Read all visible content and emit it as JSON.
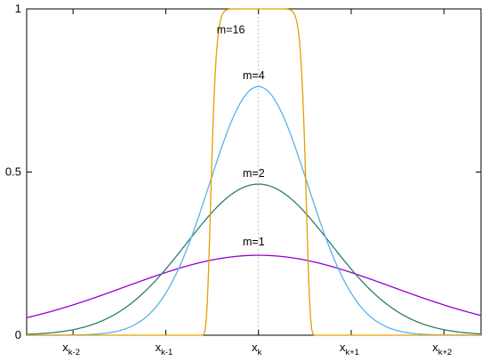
{
  "chart_data": {
    "type": "line",
    "title": "",
    "xlabel": "",
    "ylabel": "",
    "xlim": [
      -2.5,
      2.4
    ],
    "ylim": [
      0,
      1
    ],
    "grid": false,
    "y_ticks": [
      {
        "value": 0,
        "label": "0"
      },
      {
        "value": 0.5,
        "label": "0.5"
      },
      {
        "value": 1,
        "label": "1"
      }
    ],
    "x_ticks": [
      {
        "value": -2,
        "base": "x",
        "sub": "k-2"
      },
      {
        "value": -1,
        "base": "x",
        "sub": "k-1"
      },
      {
        "value": 0,
        "base": "x",
        "sub": "k"
      },
      {
        "value": 1,
        "base": "x",
        "sub": "k+1"
      },
      {
        "value": 2,
        "base": "x",
        "sub": "k+2"
      }
    ],
    "reference_line": {
      "x": 0,
      "style": "dotted",
      "color": "#aaaaaa"
    },
    "series": [
      {
        "name": "m=1",
        "m": 1,
        "color": "#9400d3",
        "peak": 0.245,
        "label_x": -0.17,
        "label_y": 0.275,
        "points": [
          [
            -2.5,
            0.08
          ],
          [
            -2,
            0.12
          ],
          [
            -1.5,
            0.16
          ],
          [
            -1,
            0.2
          ],
          [
            -0.5,
            0.233
          ],
          [
            0,
            0.245
          ],
          [
            0.5,
            0.233
          ],
          [
            1,
            0.2
          ],
          [
            1.5,
            0.16
          ],
          [
            2,
            0.12
          ],
          [
            2.4,
            0.08
          ]
        ]
      },
      {
        "name": "m=2",
        "m": 2,
        "color": "#2e7d6b",
        "peak": 0.463,
        "label_x": -0.17,
        "label_y": 0.485,
        "points": [
          [
            -2.5,
            0.017
          ],
          [
            -2,
            0.05
          ],
          [
            -1.5,
            0.12
          ],
          [
            -1,
            0.23
          ],
          [
            -0.5,
            0.385
          ],
          [
            0,
            0.463
          ],
          [
            0.5,
            0.385
          ],
          [
            1,
            0.23
          ],
          [
            1.5,
            0.12
          ],
          [
            2,
            0.05
          ],
          [
            2.4,
            0.02
          ]
        ]
      },
      {
        "name": "m=4",
        "m": 4,
        "color": "#56b4e9",
        "peak": 0.762,
        "label_x": -0.17,
        "label_y": 0.785,
        "points": [
          [
            -2.5,
            0
          ],
          [
            -2,
            0.004
          ],
          [
            -1.5,
            0.025
          ],
          [
            -1,
            0.12
          ],
          [
            -0.5,
            0.5
          ],
          [
            0,
            0.762
          ],
          [
            0.5,
            0.5
          ],
          [
            1,
            0.12
          ],
          [
            1.5,
            0.025
          ],
          [
            2,
            0.004
          ],
          [
            2.4,
            0.001
          ]
        ]
      },
      {
        "name": "m=16",
        "m": 16,
        "color": "#e69f00",
        "peak": 1.0,
        "label_x": -0.45,
        "label_y": 0.925,
        "points": [
          [
            -2.5,
            0
          ],
          [
            -1,
            0
          ],
          [
            -0.5,
            0.5
          ],
          [
            -0.4,
            0.95
          ],
          [
            0,
            1
          ],
          [
            0.4,
            0.95
          ],
          [
            0.5,
            0.5
          ],
          [
            1,
            0
          ],
          [
            2.4,
            0
          ]
        ]
      }
    ]
  }
}
